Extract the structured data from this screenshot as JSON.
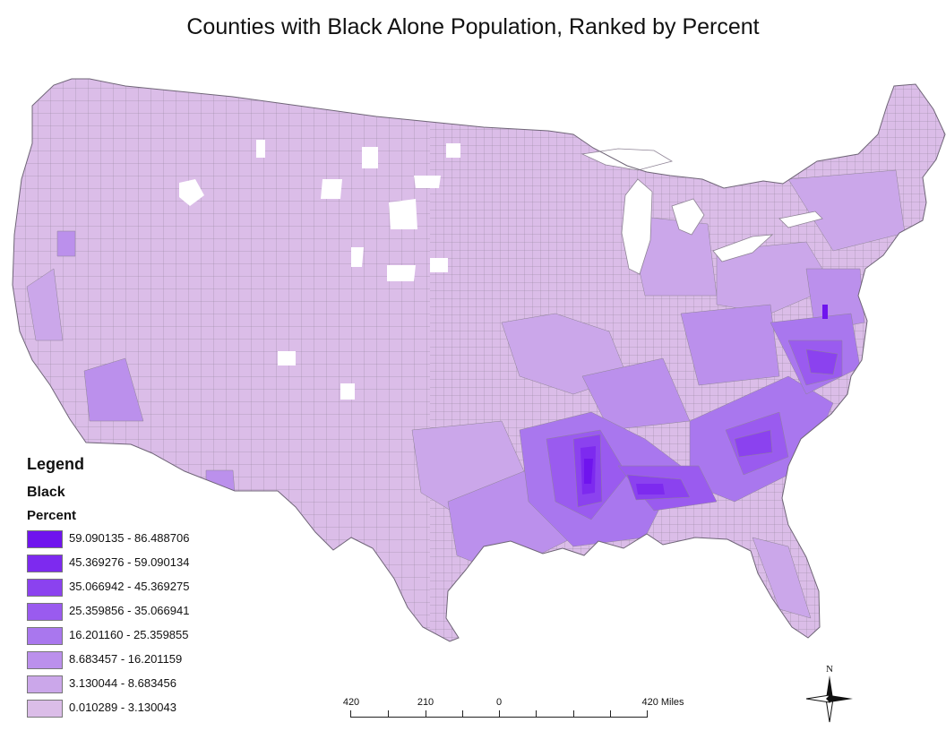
{
  "title": "Counties with Black Alone Population, Ranked by Percent",
  "legend": {
    "heading": "Legend",
    "field": "Black",
    "subfield": "Percent",
    "classes": [
      {
        "label": "59.090135 - 86.488706",
        "color": "#6f14ee"
      },
      {
        "label": "45.369276 - 59.090134",
        "color": "#7d2aef"
      },
      {
        "label": "35.066942 - 45.369275",
        "color": "#8b42ef"
      },
      {
        "label": "25.359856 - 35.066941",
        "color": "#9a5bef"
      },
      {
        "label": "16.201160 - 25.359855",
        "color": "#a977ee"
      },
      {
        "label": "8.683457 - 16.201159",
        "color": "#bb90ec"
      },
      {
        "label": "3.130044 - 8.683456",
        "color": "#cba7ea"
      },
      {
        "label": "0.010289 - 3.130043",
        "color": "#dbbde8"
      }
    ]
  },
  "scale_bar": {
    "labels": [
      "420",
      "210",
      "0",
      "420 Miles"
    ]
  },
  "north_arrow": {
    "label": "N",
    "icon": "north-arrow-icon"
  },
  "map": {
    "region": "Contiguous United States counties",
    "base_color": "#dbbde8",
    "boundary_color": "#8a7f91"
  }
}
